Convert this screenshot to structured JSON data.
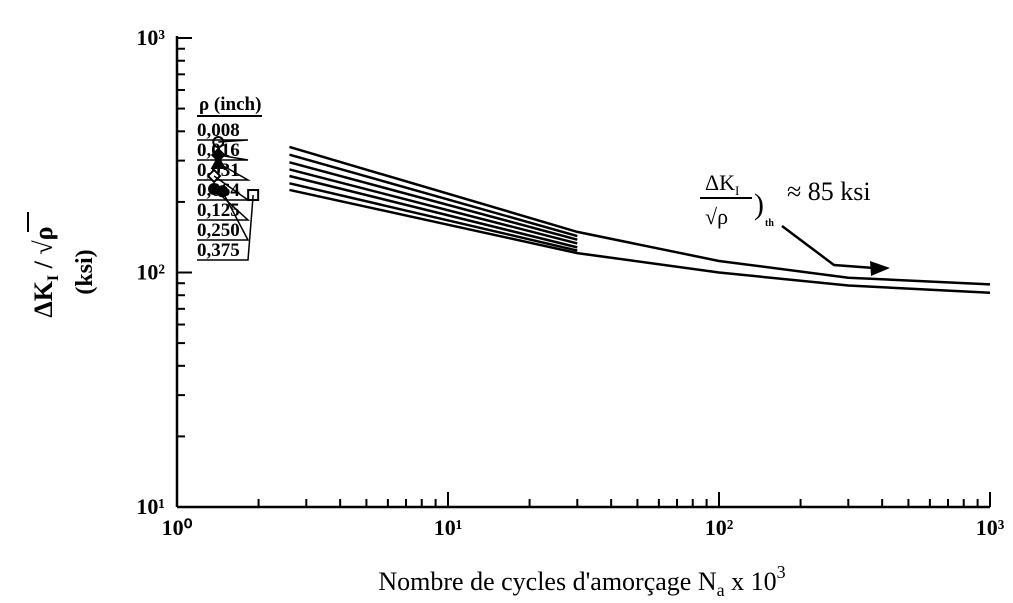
{
  "chart_data": {
    "type": "line",
    "x_label": [
      "Nombre de cycles d'amorçage N",
      "a",
      " x 10",
      "3"
    ],
    "y_label": [
      "ΔK",
      "I",
      " / √ρ"
    ],
    "y_unit": "(ksi)",
    "log_x": true,
    "log_y": true,
    "xlim": [
      1,
      1000
    ],
    "ylim": [
      10,
      1000
    ],
    "xticks": [
      {
        "value": 1,
        "label": "10⁰"
      },
      {
        "value": 10,
        "label": "10¹"
      },
      {
        "value": 100,
        "label": "10²"
      },
      {
        "value": 1000,
        "label": "10³"
      }
    ],
    "yticks": [
      {
        "value": 10,
        "label": "10¹"
      },
      {
        "value": 100,
        "label": "10²"
      },
      {
        "value": 1000,
        "label": "10³"
      }
    ],
    "legend_title": "ρ (inch)",
    "series": [
      {
        "name": "0,008",
        "color": "#000",
        "marker": "circle-open",
        "marker_x": 1.42,
        "marker_value": 360,
        "x": [
          2.6,
          30,
          100,
          300,
          1000
        ],
        "values": [
          343,
          149,
          112,
          95,
          89
        ]
      },
      {
        "name": "0,016",
        "color": "#000",
        "marker": "diamond-filled",
        "marker_x": 1.42,
        "marker_value": 317,
        "x": [
          2.6,
          30
        ],
        "values": [
          318,
          143
        ]
      },
      {
        "name": "0,031",
        "color": "#000",
        "marker": "triangle-filled",
        "marker_x": 1.42,
        "marker_value": 293,
        "x": [
          2.6,
          30
        ],
        "values": [
          295,
          138
        ]
      },
      {
        "name": "0,064",
        "color": "#000",
        "marker": "diamond-open",
        "marker_x": 1.37,
        "marker_value": 258,
        "x": [
          2.6,
          30
        ],
        "values": [
          275,
          133
        ]
      },
      {
        "name": "0,125",
        "color": "#000",
        "marker": "circle-filled",
        "marker_x": 1.37,
        "marker_value": 227,
        "x": [
          2.6,
          30
        ],
        "values": [
          258,
          128
        ]
      },
      {
        "name": "0,250",
        "color": "#000",
        "marker": "circle-filled",
        "marker_x": 1.47,
        "marker_value": 222,
        "x": [
          2.6,
          30
        ],
        "values": [
          240,
          124
        ]
      },
      {
        "name": "0,375",
        "color": "#000",
        "marker": "square-open",
        "marker_x": 1.91,
        "marker_value": 214,
        "x": [
          2.6,
          30,
          100,
          300,
          1000
        ],
        "values": [
          225,
          121,
          100,
          88,
          82
        ]
      }
    ],
    "annotation": {
      "numerator": "ΔK",
      "numerator_sub": "I",
      "denominator": "√ρ",
      "close": ")",
      "subscript": "th",
      "text": "≈ 85 ksi"
    }
  }
}
